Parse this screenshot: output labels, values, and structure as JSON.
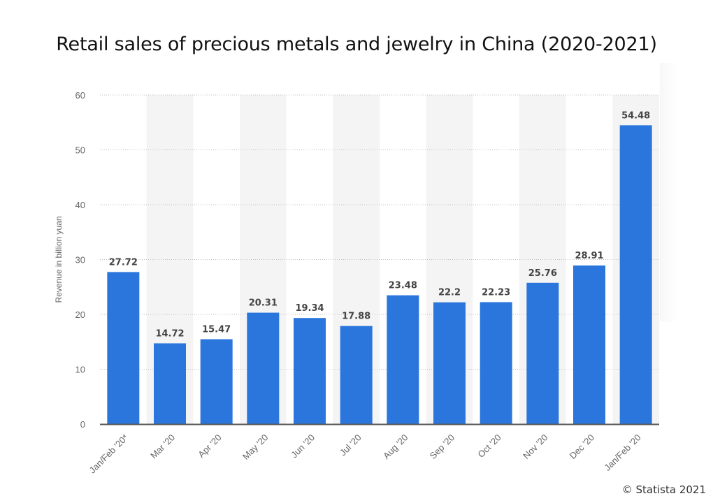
{
  "page": {
    "title": "Retail sales of precious metals and jewelry in China  (2020-2021)",
    "copyright": "© Statista 2021"
  },
  "colors": {
    "bar": "#2a76dd",
    "band": "#f4f4f4",
    "grid": "#bfbfbf",
    "axis": "#555555",
    "label": "#444444",
    "tick": "#666666"
  },
  "chart_data": {
    "type": "bar",
    "title": "Retail sales of precious metals and jewelry in China  (2020-2021)",
    "xlabel": "",
    "ylabel": "Revenue in billion yuan",
    "ylim": [
      0,
      60
    ],
    "yticks": [
      0,
      10,
      20,
      30,
      40,
      50,
      60
    ],
    "grid": true,
    "categories": [
      "Jan/Feb '20*",
      "Mar '20",
      "Apr '20",
      "May '20",
      "Jun '20",
      "Jul '20",
      "Aug '20",
      "Sep '20",
      "Oct '20",
      "Nov '20",
      "Dec '20",
      "Jan/Feb '20"
    ],
    "values": [
      27.72,
      14.72,
      15.47,
      20.31,
      19.34,
      17.88,
      23.48,
      22.2,
      22.23,
      25.76,
      28.91,
      54.48
    ],
    "value_labels": [
      "27.72",
      "14.72",
      "15.47",
      "20.31",
      "19.34",
      "17.88",
      "23.48",
      "22.2",
      "22.23",
      "25.76",
      "28.91",
      "54.48"
    ]
  }
}
